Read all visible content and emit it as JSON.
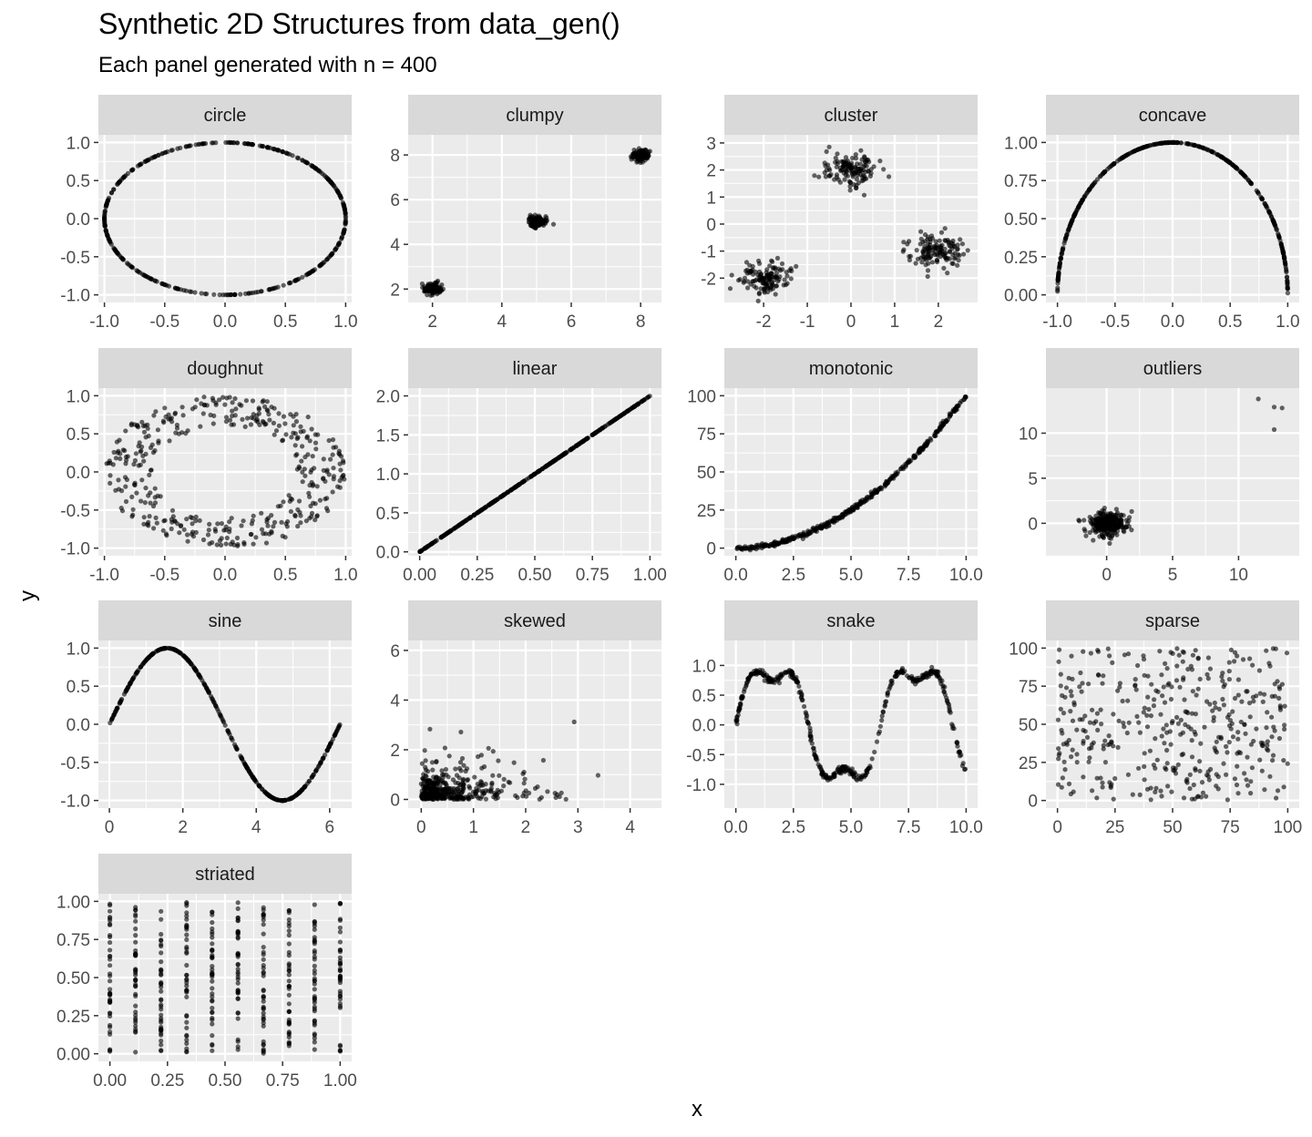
{
  "title": "Synthetic 2D Structures from data_gen()",
  "subtitle": "Each panel generated with n = 400",
  "xlabel": "x",
  "ylabel": "y",
  "colors": {
    "panel_background": "#ebebeb",
    "strip_background": "#d9d9d9",
    "grid": "#ffffff",
    "points": "#000000",
    "tick_text": "#4d4d4d"
  },
  "chart_data": [
    {
      "type": "scatter",
      "title": "circle",
      "shape": "ellipse",
      "params": {
        "cx": 0,
        "cy": 0,
        "rx": 1,
        "ry": 1
      },
      "xlim": [
        -1.05,
        1.05
      ],
      "ylim": [
        -1.1,
        1.1
      ],
      "xticks": [
        -1.0,
        -0.5,
        0.0,
        0.5,
        1.0
      ],
      "xtick_labels": [
        "-1.0",
        "-0.5",
        "0.0",
        "0.5",
        "1.0"
      ],
      "yticks": [
        -1.0,
        -0.5,
        0.0,
        0.5,
        1.0
      ],
      "ytick_labels": [
        "-1.0",
        "-0.5",
        "0.0",
        "0.5",
        "1.0"
      ]
    },
    {
      "type": "scatter",
      "title": "clumpy",
      "shape": "clumps",
      "params": {
        "centers": [
          [
            2,
            2
          ],
          [
            5,
            5
          ],
          [
            8,
            8
          ]
        ],
        "sd": 0.12
      },
      "xlim": [
        1.3,
        8.6
      ],
      "ylim": [
        1.4,
        8.9
      ],
      "xticks": [
        2,
        4,
        6,
        8
      ],
      "xtick_labels": [
        "2",
        "4",
        "6",
        "8"
      ],
      "yticks": [
        2,
        4,
        6,
        8
      ],
      "ytick_labels": [
        "2",
        "4",
        "6",
        "8"
      ]
    },
    {
      "type": "scatter",
      "title": "cluster",
      "shape": "clumps",
      "params": {
        "centers": [
          [
            -2,
            -2
          ],
          [
            0,
            2
          ],
          [
            2,
            -1
          ]
        ],
        "sd": 0.3
      },
      "xlim": [
        -2.9,
        2.9
      ],
      "ylim": [
        -2.9,
        3.3
      ],
      "xticks": [
        -2,
        -1,
        0,
        1,
        2
      ],
      "xtick_labels": [
        "-2",
        "-1",
        "0",
        "1",
        "2"
      ],
      "yticks": [
        -2,
        -1,
        0,
        1,
        2,
        3
      ],
      "ytick_labels": [
        "-2",
        "-1",
        "0",
        "1",
        "2",
        "3"
      ]
    },
    {
      "type": "scatter",
      "title": "concave",
      "shape": "arc",
      "params": {
        "r": 1
      },
      "xlim": [
        -1.1,
        1.1
      ],
      "ylim": [
        -0.05,
        1.05
      ],
      "xticks": [
        -1.0,
        -0.5,
        0.0,
        0.5,
        1.0
      ],
      "xtick_labels": [
        "-1.0",
        "-0.5",
        "0.0",
        "0.5",
        "1.0"
      ],
      "yticks": [
        0.0,
        0.25,
        0.5,
        0.75,
        1.0
      ],
      "ytick_labels": [
        "0.00",
        "0.25",
        "0.50",
        "0.75",
        "1.00"
      ]
    },
    {
      "type": "scatter",
      "title": "doughnut",
      "shape": "annulus",
      "params": {
        "r_inner": 0.6,
        "r_outer": 1.0
      },
      "xlim": [
        -1.05,
        1.05
      ],
      "ylim": [
        -1.1,
        1.1
      ],
      "xticks": [
        -1.0,
        -0.5,
        0.0,
        0.5,
        1.0
      ],
      "xtick_labels": [
        "-1.0",
        "-0.5",
        "0.0",
        "0.5",
        "1.0"
      ],
      "yticks": [
        -1.0,
        -0.5,
        0.0,
        0.5,
        1.0
      ],
      "ytick_labels": [
        "-1.0",
        "-0.5",
        "0.0",
        "0.5",
        "1.0"
      ]
    },
    {
      "type": "scatter",
      "title": "linear",
      "shape": "line",
      "params": {
        "slope": 2,
        "intercept": 0,
        "x_range": [
          0,
          1
        ]
      },
      "xlim": [
        -0.05,
        1.05
      ],
      "ylim": [
        -0.05,
        2.1
      ],
      "xticks": [
        0.0,
        0.25,
        0.5,
        0.75,
        1.0
      ],
      "xtick_labels": [
        "0.00",
        "0.25",
        "0.50",
        "0.75",
        "1.00"
      ],
      "yticks": [
        0.0,
        0.5,
        1.0,
        1.5,
        2.0
      ],
      "ytick_labels": [
        "0.0",
        "0.5",
        "1.0",
        "1.5",
        "2.0"
      ]
    },
    {
      "type": "scatter",
      "title": "monotonic",
      "shape": "quadratic",
      "params": {
        "x_range": [
          0,
          10
        ]
      },
      "xlim": [
        -0.5,
        10.5
      ],
      "ylim": [
        -5,
        105
      ],
      "xticks": [
        0,
        2.5,
        5,
        7.5,
        10
      ],
      "xtick_labels": [
        "0.0",
        "2.5",
        "5.0",
        "7.5",
        "10.0"
      ],
      "yticks": [
        0,
        25,
        50,
        75,
        100
      ],
      "ytick_labels": [
        "0",
        "25",
        "50",
        "75",
        "100"
      ]
    },
    {
      "type": "scatter",
      "title": "outliers",
      "shape": "blob_outliers",
      "params": {
        "center": [
          0,
          0
        ],
        "sd": 0.8,
        "outliers": [
          [
            11.5,
            13.8
          ],
          [
            12.7,
            12.9
          ],
          [
            13.3,
            12.8
          ],
          [
            12.7,
            10.4
          ]
        ]
      },
      "xlim": [
        -4.6,
        14.6
      ],
      "ylim": [
        -3.6,
        15
      ],
      "xticks": [
        0,
        5,
        10
      ],
      "xtick_labels": [
        "0",
        "5",
        "10"
      ],
      "yticks": [
        0,
        5,
        10
      ],
      "ytick_labels": [
        "0",
        "5",
        "10"
      ]
    },
    {
      "type": "scatter",
      "title": "sine",
      "shape": "sine",
      "params": {
        "x_range": [
          0,
          6.283
        ]
      },
      "xlim": [
        -0.3,
        6.6
      ],
      "ylim": [
        -1.1,
        1.1
      ],
      "xticks": [
        0,
        2,
        4,
        6
      ],
      "xtick_labels": [
        "0",
        "2",
        "4",
        "6"
      ],
      "yticks": [
        -1.0,
        -0.5,
        0.0,
        0.5,
        1.0
      ],
      "ytick_labels": [
        "-1.0",
        "-0.5",
        "0.0",
        "0.5",
        "1.0"
      ]
    },
    {
      "type": "scatter",
      "title": "skewed",
      "shape": "exp_skew",
      "params": {
        "x_mean": 0.6,
        "y_mean": 0.6
      },
      "xlim": [
        -0.25,
        4.6
      ],
      "ylim": [
        -0.35,
        6.4
      ],
      "xticks": [
        0,
        1,
        2,
        3,
        4
      ],
      "xtick_labels": [
        "0",
        "1",
        "2",
        "3",
        "4"
      ],
      "yticks": [
        0,
        2,
        4,
        6
      ],
      "ytick_labels": [
        "0",
        "2",
        "4",
        "6"
      ]
    },
    {
      "type": "scatter",
      "title": "snake",
      "shape": "snake",
      "params": {
        "x_range": [
          0,
          10
        ]
      },
      "xlim": [
        -0.5,
        10.5
      ],
      "ylim": [
        -1.4,
        1.42
      ],
      "xticks": [
        0,
        2.5,
        5,
        7.5,
        10
      ],
      "xtick_labels": [
        "0.0",
        "2.5",
        "5.0",
        "7.5",
        "10.0"
      ],
      "yticks": [
        -1.0,
        -0.5,
        0.0,
        0.5,
        1.0
      ],
      "ytick_labels": [
        "-1.0",
        "-0.5",
        "0.0",
        "0.5",
        "1.0"
      ]
    },
    {
      "type": "scatter",
      "title": "sparse",
      "shape": "uniform",
      "params": {
        "x_range": [
          0,
          100
        ],
        "y_range": [
          0,
          100
        ]
      },
      "xlim": [
        -5,
        105
      ],
      "ylim": [
        -5,
        105
      ],
      "xticks": [
        0,
        25,
        50,
        75,
        100
      ],
      "xtick_labels": [
        "0",
        "25",
        "50",
        "75",
        "100"
      ],
      "yticks": [
        0,
        25,
        50,
        75,
        100
      ],
      "ytick_labels": [
        "0",
        "25",
        "50",
        "75",
        "100"
      ]
    },
    {
      "type": "scatter",
      "title": "striated",
      "shape": "stripes",
      "params": {
        "x_values": [
          0,
          0.111,
          0.222,
          0.333,
          0.444,
          0.556,
          0.667,
          0.778,
          0.889,
          1.0
        ],
        "y_range": [
          0,
          1
        ]
      },
      "xlim": [
        -0.05,
        1.05
      ],
      "ylim": [
        -0.05,
        1.05
      ],
      "xticks": [
        0,
        0.25,
        0.5,
        0.75,
        1.0
      ],
      "xtick_labels": [
        "0.00",
        "0.25",
        "0.50",
        "0.75",
        "1.00"
      ],
      "yticks": [
        0,
        0.25,
        0.5,
        0.75,
        1.0
      ],
      "ytick_labels": [
        "0.00",
        "0.25",
        "0.50",
        "0.75",
        "1.00"
      ]
    }
  ]
}
